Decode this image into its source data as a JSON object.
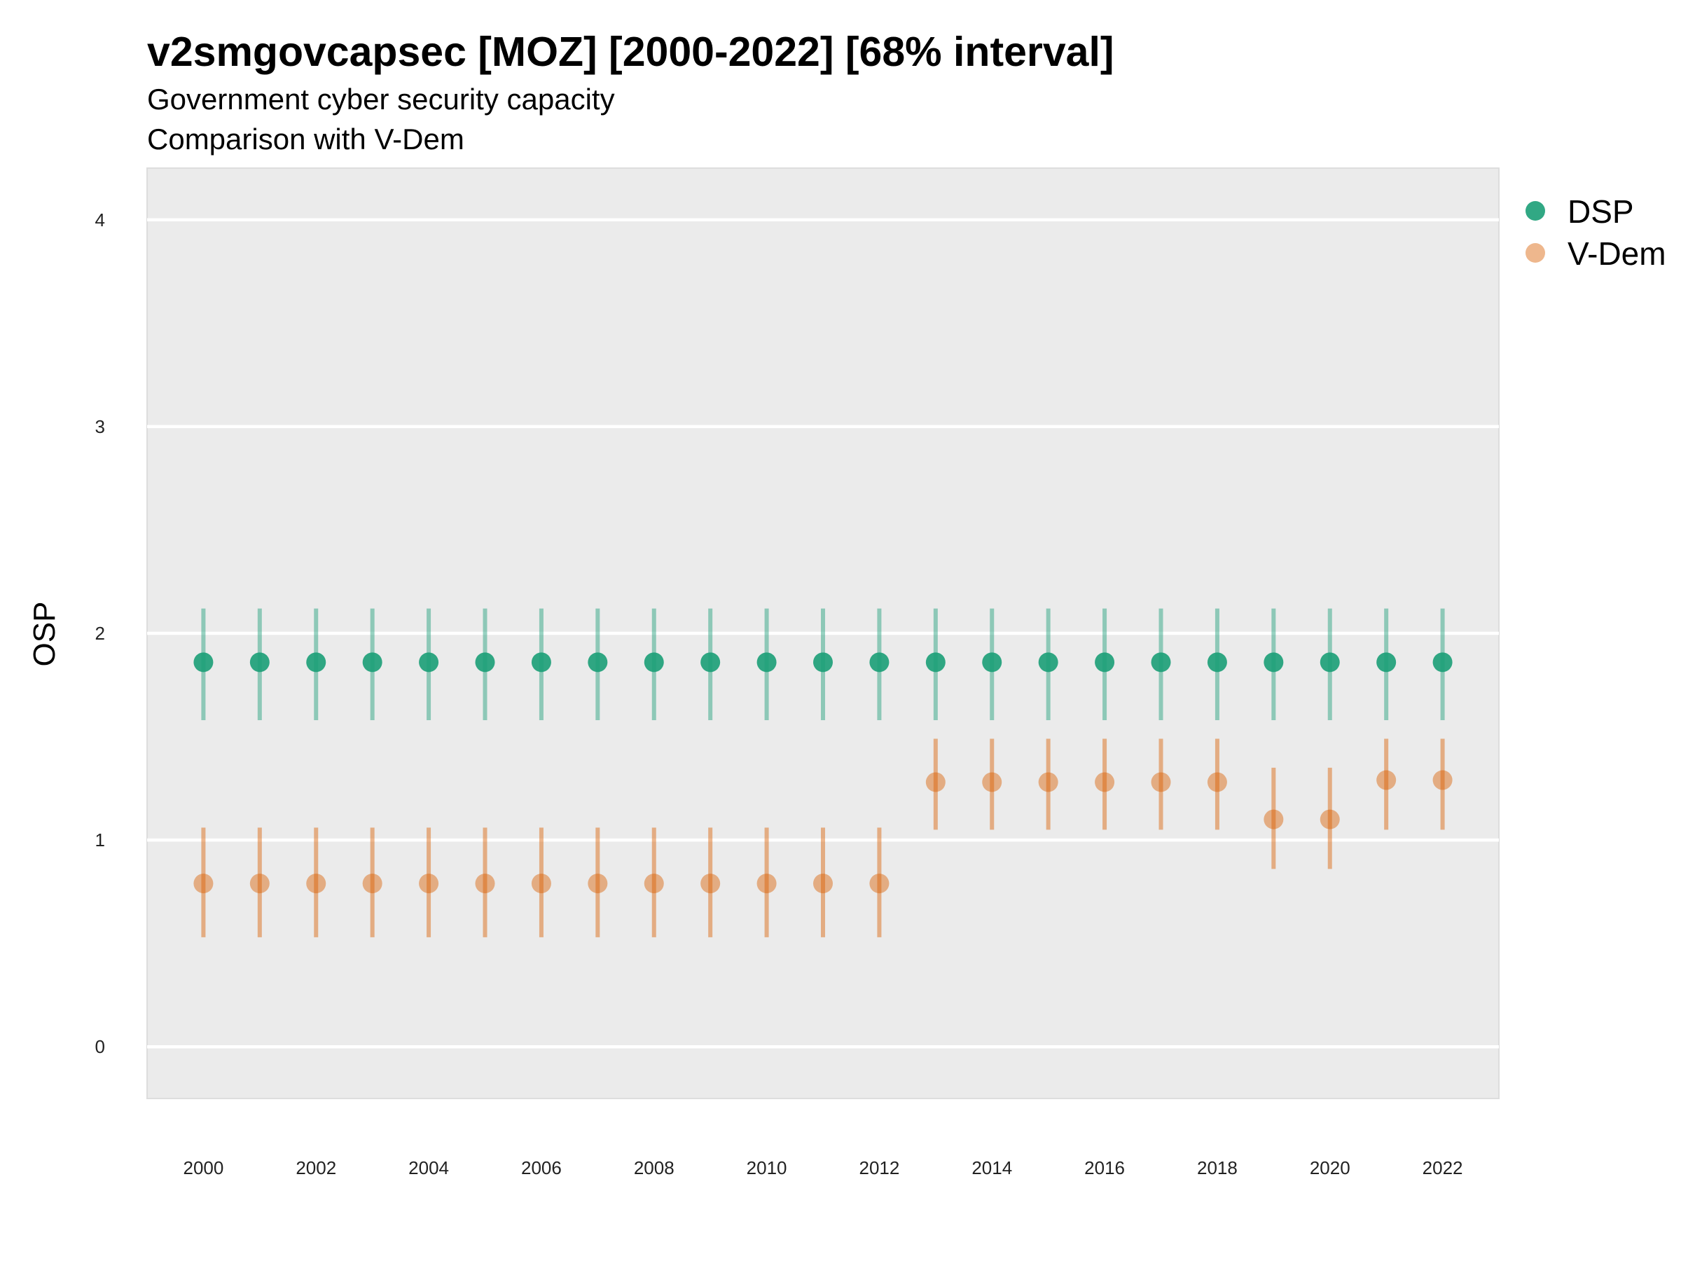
{
  "chart_data": {
    "type": "scatter",
    "title": "v2smgovcapsec [MOZ] [2000-2022] [68% interval]",
    "subtitle": "Government cyber security capacity",
    "subtitle2": "Comparison with V-Dem",
    "xlabel": "",
    "ylabel": "OSP",
    "xlim": [
      1999,
      2023
    ],
    "ylim": [
      -0.25,
      4.25
    ],
    "x_ticks": [
      2000,
      2002,
      2004,
      2006,
      2008,
      2010,
      2012,
      2014,
      2016,
      2018,
      2020,
      2022
    ],
    "y_ticks": [
      0,
      1,
      2,
      3,
      4
    ],
    "grid": true,
    "legend_position": "right",
    "x": [
      2000,
      2001,
      2002,
      2003,
      2004,
      2005,
      2006,
      2007,
      2008,
      2009,
      2010,
      2011,
      2012,
      2013,
      2014,
      2015,
      2016,
      2017,
      2018,
      2019,
      2020,
      2021,
      2022
    ],
    "series": [
      {
        "name": "DSP",
        "color": "#1b9e77",
        "values": [
          1.86,
          1.86,
          1.86,
          1.86,
          1.86,
          1.86,
          1.86,
          1.86,
          1.86,
          1.86,
          1.86,
          1.86,
          1.86,
          1.86,
          1.86,
          1.86,
          1.86,
          1.86,
          1.86,
          1.86,
          1.86,
          1.86,
          1.86
        ],
        "lower": [
          1.58,
          1.58,
          1.58,
          1.58,
          1.58,
          1.58,
          1.58,
          1.58,
          1.58,
          1.58,
          1.58,
          1.58,
          1.58,
          1.58,
          1.58,
          1.58,
          1.58,
          1.58,
          1.58,
          1.58,
          1.58,
          1.58,
          1.58
        ],
        "upper": [
          2.12,
          2.12,
          2.12,
          2.12,
          2.12,
          2.12,
          2.12,
          2.12,
          2.12,
          2.12,
          2.12,
          2.12,
          2.12,
          2.12,
          2.12,
          2.12,
          2.12,
          2.12,
          2.12,
          2.12,
          2.12,
          2.12,
          2.12
        ]
      },
      {
        "name": "V-Dem",
        "color": "#d95f02",
        "values": [
          0.79,
          0.79,
          0.79,
          0.79,
          0.79,
          0.79,
          0.79,
          0.79,
          0.79,
          0.79,
          0.79,
          0.79,
          0.79,
          1.28,
          1.28,
          1.28,
          1.28,
          1.28,
          1.28,
          1.1,
          1.1,
          1.29,
          1.29
        ],
        "lower": [
          0.53,
          0.53,
          0.53,
          0.53,
          0.53,
          0.53,
          0.53,
          0.53,
          0.53,
          0.53,
          0.53,
          0.53,
          0.53,
          1.05,
          1.05,
          1.05,
          1.05,
          1.05,
          1.05,
          0.86,
          0.86,
          1.05,
          1.05
        ],
        "upper": [
          1.06,
          1.06,
          1.06,
          1.06,
          1.06,
          1.06,
          1.06,
          1.06,
          1.06,
          1.06,
          1.06,
          1.06,
          1.06,
          1.49,
          1.49,
          1.49,
          1.49,
          1.49,
          1.49,
          1.35,
          1.35,
          1.49,
          1.49
        ]
      }
    ]
  }
}
